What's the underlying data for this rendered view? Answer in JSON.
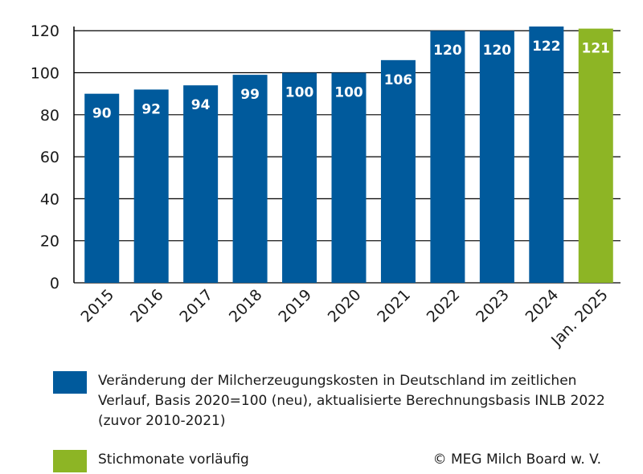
{
  "chart_data": {
    "type": "bar",
    "categories": [
      "2015",
      "2016",
      "2017",
      "2018",
      "2019",
      "2020",
      "2021",
      "2022",
      "2023",
      "2024",
      "Jan. 2025"
    ],
    "values": [
      90,
      92,
      94,
      99,
      100,
      100,
      106,
      120,
      120,
      122,
      121
    ],
    "data_labels": [
      "90",
      "92",
      "94",
      "99",
      "100",
      "100",
      "106",
      "120",
      "120",
      "122",
      "121"
    ],
    "provisional": [
      false,
      false,
      false,
      false,
      false,
      false,
      false,
      false,
      false,
      false,
      true
    ],
    "yticks": [
      0,
      20,
      40,
      60,
      80,
      100,
      120
    ],
    "ylim": [
      0,
      122
    ],
    "grid": true,
    "legend_position": "bottom",
    "colors": {
      "main": "#005a9c",
      "provisional": "#8db525"
    }
  },
  "legend": {
    "items": [
      {
        "label": "Veränderung der Milcherzeugungskosten in Deutschland im zeitlichen Verlauf, Basis 2020=100 (neu), aktualisierte Berechnungsbasis INLB 2022 (zuvor 2010-2021)",
        "color": "#005a9c"
      },
      {
        "label": "Stichmonate vorläufig",
        "color": "#8db525"
      }
    ]
  },
  "copyright": "© MEG Milch Board w. V."
}
